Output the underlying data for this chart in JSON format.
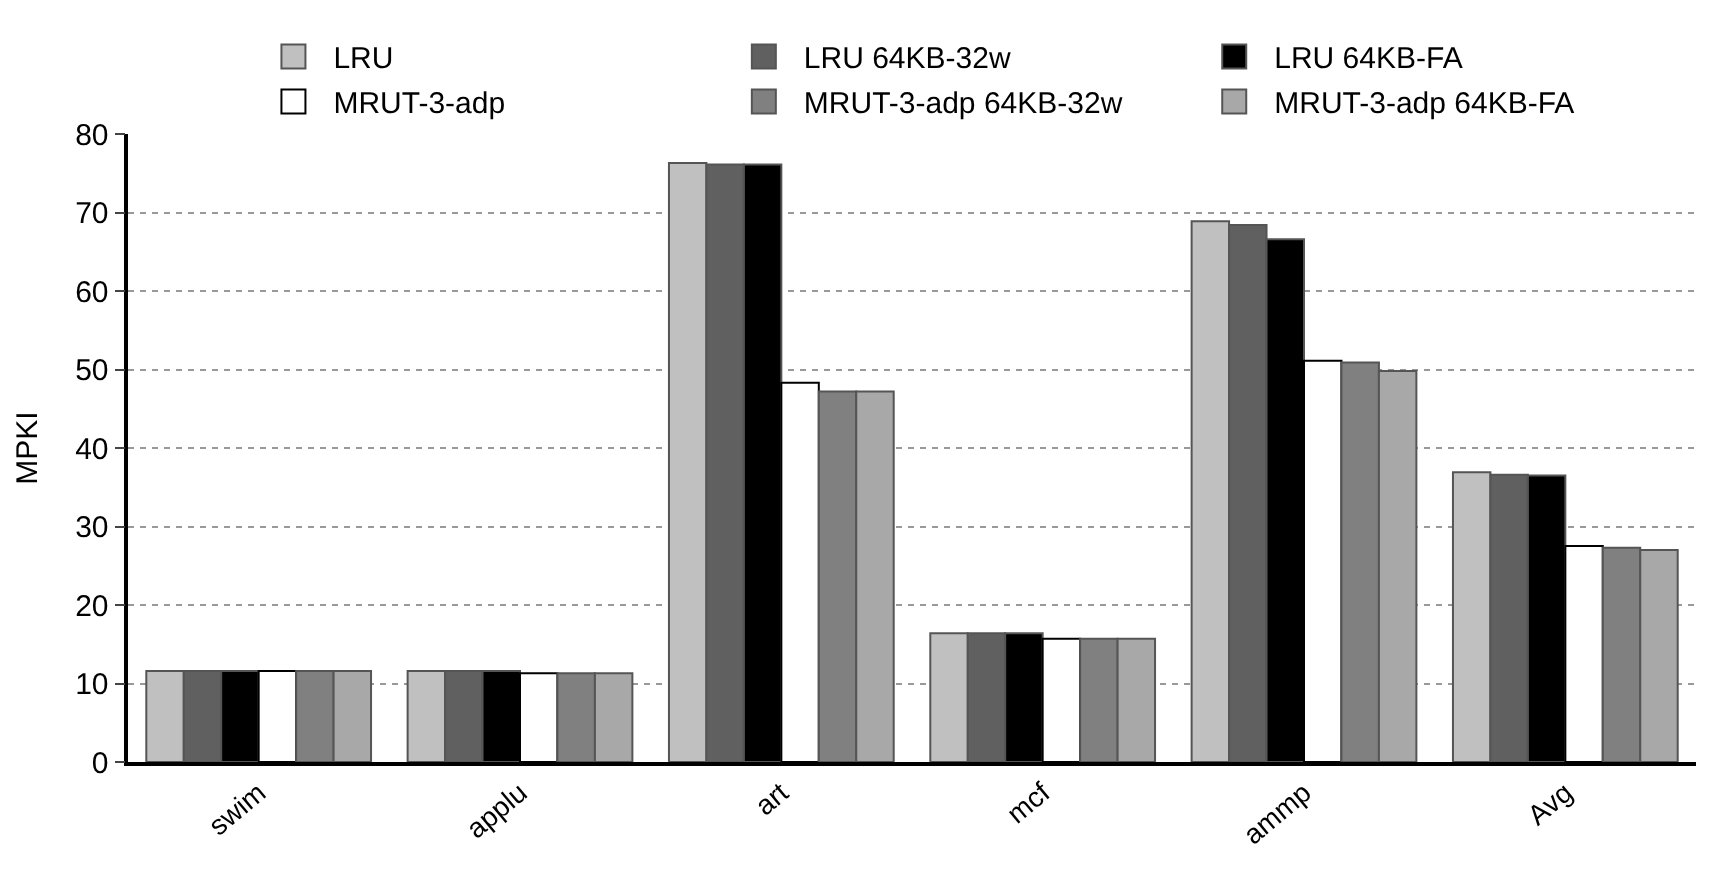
{
  "chart_data": {
    "type": "bar",
    "ylabel": "MPKI",
    "categories": [
      "swim",
      "applu",
      "art",
      "mcf",
      "ammp",
      "Avg"
    ],
    "series": [
      {
        "name": "LRU",
        "color": "#c0c0c0",
        "values": [
          11.6,
          11.6,
          76.3,
          16.4,
          68.9,
          36.9
        ]
      },
      {
        "name": "LRU 64KB-32w",
        "color": "#606060",
        "values": [
          11.6,
          11.6,
          76.1,
          16.4,
          68.4,
          36.6
        ]
      },
      {
        "name": "LRU 64KB-FA",
        "color": "#000000",
        "values": [
          11.6,
          11.6,
          76.1,
          16.4,
          66.6,
          36.5
        ]
      },
      {
        "name": "MRUT-3-adp",
        "color": "#ffffff",
        "values": [
          11.6,
          11.3,
          48.3,
          15.7,
          51.1,
          27.5
        ]
      },
      {
        "name": "MRUT-3-adp 64KB-32w",
        "color": "#808080",
        "values": [
          11.6,
          11.3,
          47.2,
          15.7,
          50.9,
          27.3
        ]
      },
      {
        "name": "MRUT-3-adp 64KB-FA",
        "color": "#a8a8a8",
        "values": [
          11.6,
          11.3,
          47.2,
          15.7,
          49.8,
          27.0
        ]
      }
    ],
    "ylim": [
      0,
      80
    ],
    "yticks": [
      0,
      10,
      20,
      30,
      40,
      50,
      60,
      70,
      80
    ],
    "grid": "y",
    "legend": "top"
  }
}
